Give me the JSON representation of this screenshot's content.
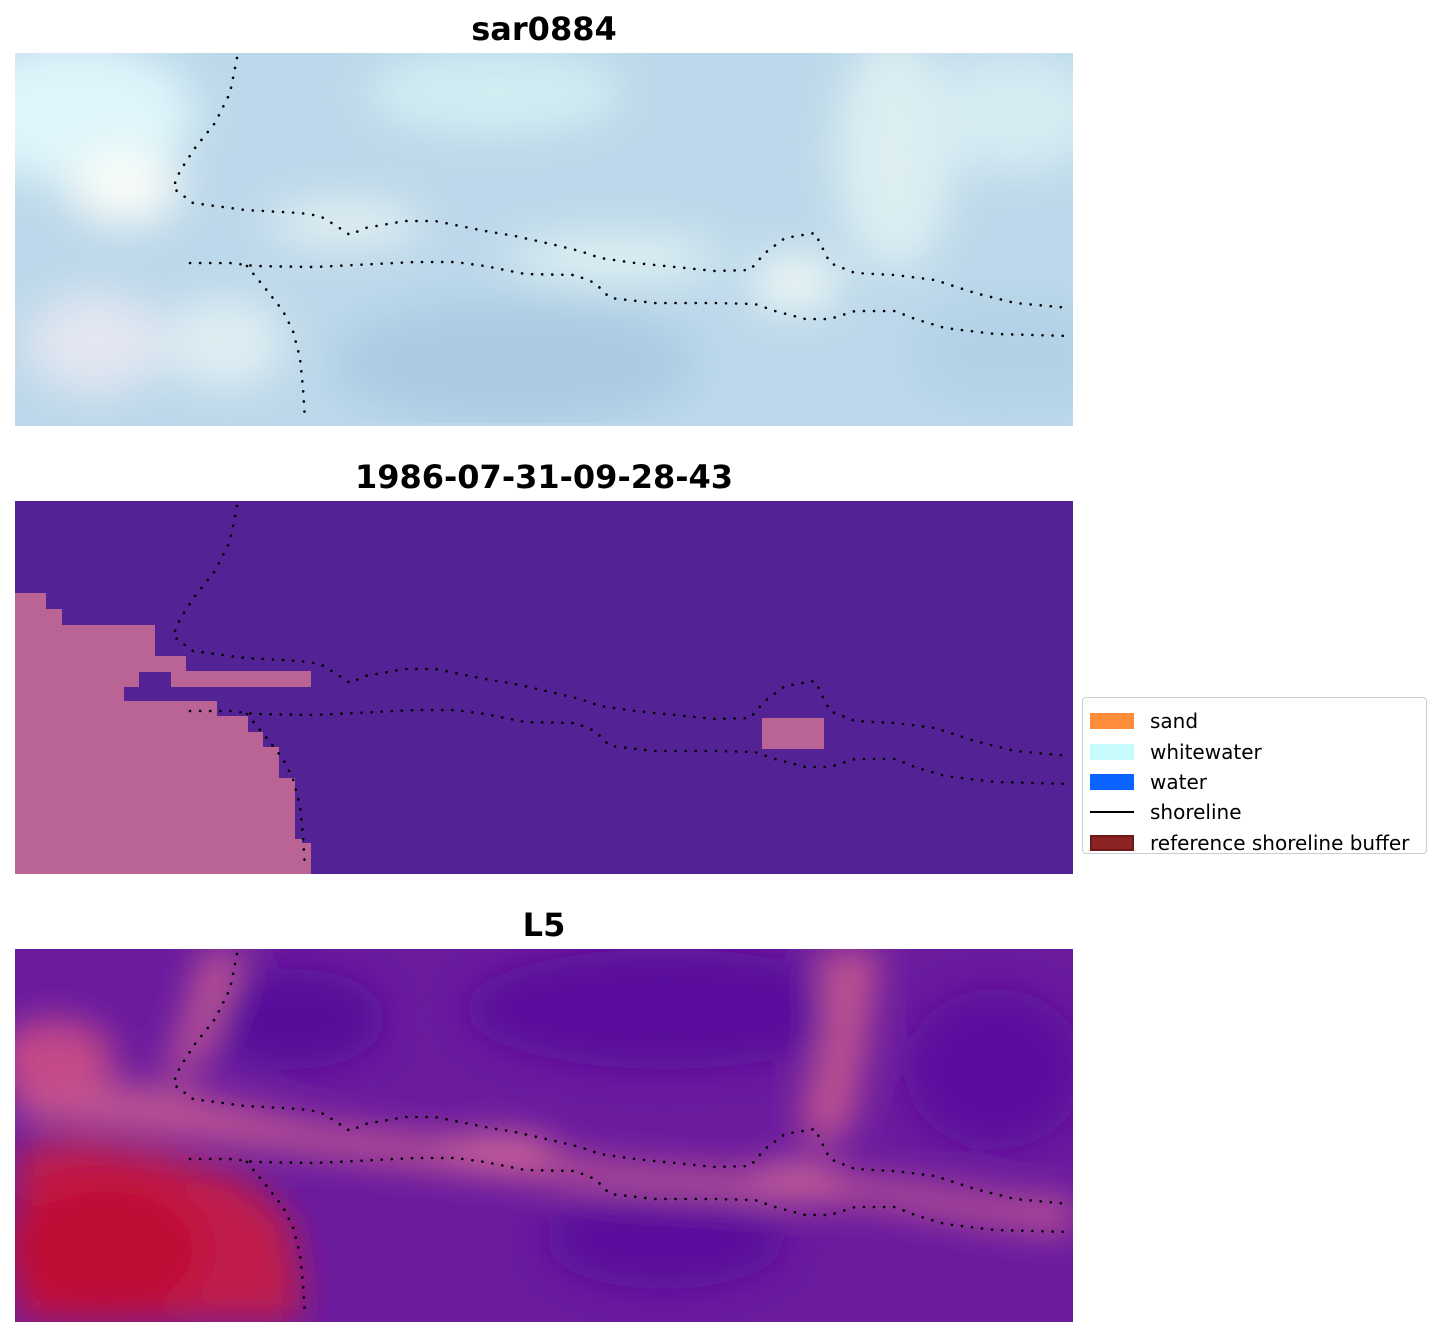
{
  "chart_data": [
    {
      "type": "heatmap",
      "title": "sar0884",
      "colormap": "ice-blue",
      "base_color": "#bcd8ea"
    },
    {
      "type": "heatmap",
      "title": "1986-07-31-09-28-43",
      "colormap": "classification",
      "base_color": "#532396",
      "highlight_color": "#b96494"
    },
    {
      "type": "heatmap",
      "title": "L5",
      "colormap": "purple-red",
      "base_color": "#6a1b9e",
      "highlight_color": "#c30e3c"
    }
  ],
  "legend": {
    "placement": "right",
    "items": [
      {
        "label": "sand",
        "color": "#ff8c3a",
        "kind": "patch"
      },
      {
        "label": "whitewater",
        "color": "#c8fbfb",
        "kind": "patch"
      },
      {
        "label": "water",
        "color": "#0a64ff",
        "kind": "patch"
      },
      {
        "label": "shoreline",
        "color": "#000000",
        "kind": "line"
      },
      {
        "label": "reference shoreline buffer",
        "color": "#8b2323",
        "edge": "#6e1818",
        "kind": "patch"
      }
    ]
  }
}
